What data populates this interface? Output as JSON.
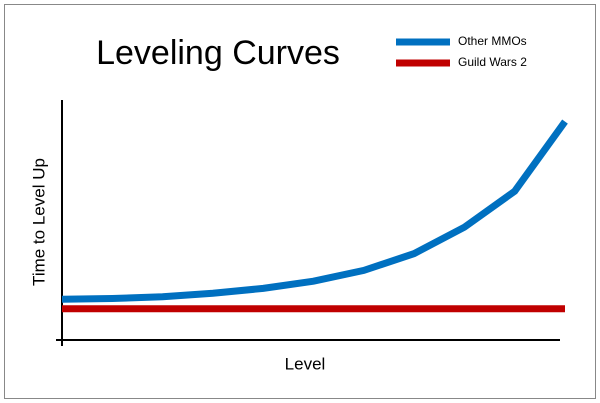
{
  "chart_data": {
    "type": "line",
    "title": "Leveling Curves",
    "x_label": "Level",
    "y_label": "Time to Level Up",
    "x": [
      0,
      10,
      20,
      30,
      40,
      50,
      60,
      70,
      80,
      90,
      100
    ],
    "xlim": [
      0,
      100
    ],
    "ylim": [
      0,
      100
    ],
    "series": [
      {
        "name": "Other MMOs",
        "color": "#0070c0",
        "values": [
          17,
          17.3,
          18,
          19.5,
          21.5,
          24.5,
          29,
          36,
          47,
          62,
          91
        ]
      },
      {
        "name": "Guild Wars 2",
        "color": "#c00000",
        "values": [
          13,
          13,
          13,
          13,
          13,
          13,
          13,
          13,
          13,
          13,
          13
        ]
      }
    ]
  }
}
